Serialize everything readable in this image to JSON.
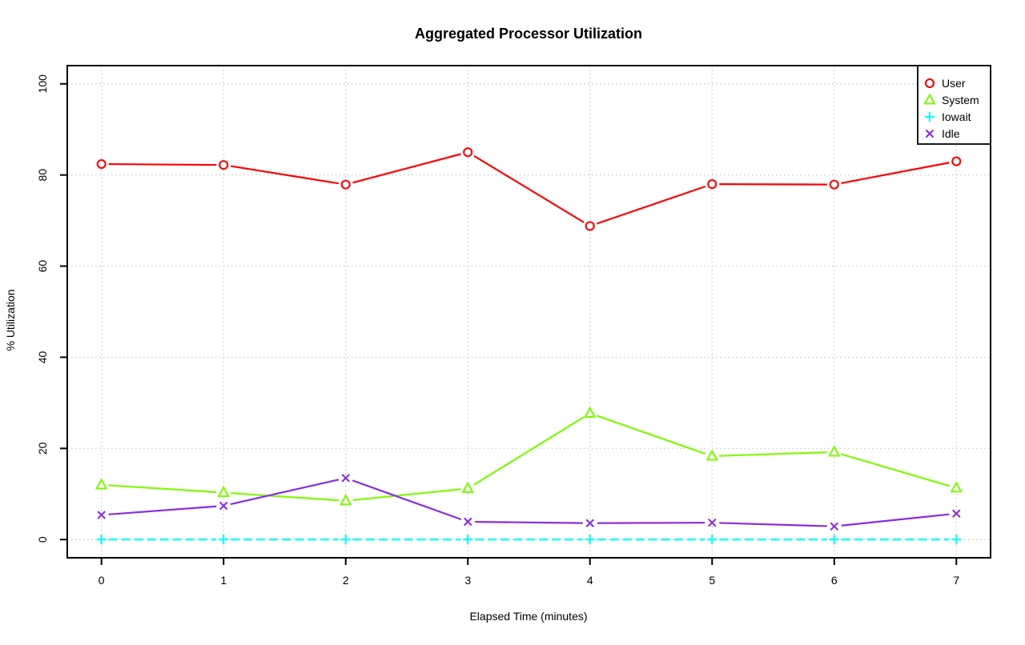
{
  "page": {
    "background": "#ffffff",
    "text_color": "#000000"
  },
  "chart_data": {
    "type": "line",
    "title": "Aggregated Processor Utilization",
    "xlabel": "Elapsed Time (minutes)",
    "ylabel": "% Utilization",
    "x": [
      0,
      1,
      2,
      3,
      4,
      5,
      6,
      7
    ],
    "xtick_labels": [
      "0",
      "1",
      "2",
      "3",
      "4",
      "5",
      "6",
      "7"
    ],
    "yticks": [
      0,
      20,
      40,
      60,
      80,
      100
    ],
    "ytick_labels": [
      "0",
      "20",
      "40",
      "60",
      "80",
      "100"
    ],
    "xlim": [
      0,
      7
    ],
    "ylim": [
      0,
      100
    ],
    "grid": true,
    "grid_color": "#c8c8c8",
    "axis_color": "#000000",
    "legend_position": "top-right",
    "legend_entries": [
      "User",
      "System",
      "Iowait",
      "Idle"
    ],
    "series": [
      {
        "name": "User",
        "color": "#ff0000",
        "marker": "circle",
        "line_style": "solid",
        "values": [
          82.4,
          82.2,
          77.9,
          85.0,
          68.8,
          78.0,
          77.9,
          83.0
        ]
      },
      {
        "name": "System",
        "color": "#7cfc00",
        "marker": "triangle",
        "line_style": "solid",
        "values": [
          12.0,
          10.3,
          8.5,
          11.2,
          27.7,
          18.3,
          19.2,
          11.3
        ]
      },
      {
        "name": "Iowait",
        "color": "#00ffff",
        "marker": "plus",
        "line_style": "dashed",
        "values": [
          0,
          0,
          0,
          0,
          0,
          0,
          0,
          0
        ]
      },
      {
        "name": "Idle",
        "color": "#8a2be2",
        "marker": "x",
        "line_style": "solid",
        "values": [
          5.4,
          7.4,
          13.5,
          3.9,
          3.6,
          3.7,
          2.9,
          5.7
        ]
      }
    ]
  }
}
